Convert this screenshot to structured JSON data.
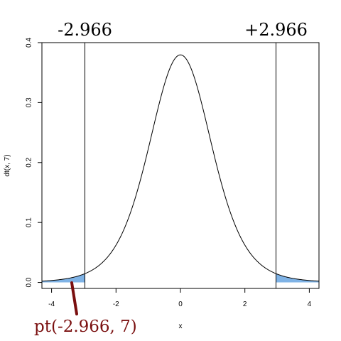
{
  "chart_data": {
    "type": "line",
    "title": "",
    "xlabel": "x",
    "ylabel": "dt(x, 7)",
    "xlim": [
      -4.3,
      4.3
    ],
    "ylim": [
      -0.01,
      0.4
    ],
    "x_ticks": [
      -4,
      -2,
      0,
      2,
      4
    ],
    "x_tick_labels": [
      "-4",
      "-2",
      "0",
      "2",
      "4"
    ],
    "y_ticks": [
      0.0,
      0.1,
      0.2,
      0.3,
      0.4
    ],
    "y_tick_labels": [
      "0.0",
      "0.1",
      "0.2",
      "0.3",
      "0.4"
    ],
    "grid": false,
    "series": [
      {
        "x": [
          -4.3,
          -4.0,
          -3.5,
          -3.0,
          -2.966,
          -2.5,
          -2.0,
          -1.5,
          -1.0,
          -0.5,
          0.0,
          0.5,
          1.0,
          1.5,
          2.0,
          2.5,
          2.966,
          3.0,
          3.5,
          4.0,
          4.3
        ],
        "values": [
          0.0027,
          0.0042,
          0.0082,
          0.0145,
          0.0152,
          0.0339,
          0.064,
          0.1254,
          0.2291,
          0.3393,
          0.3796,
          0.3393,
          0.2291,
          0.1254,
          0.064,
          0.0339,
          0.0152,
          0.0145,
          0.0082,
          0.0042,
          0.0027
        ]
      }
    ],
    "critical_values": [
      -2.966,
      2.966
    ],
    "critical_labels": [
      "-2.966",
      "+2.966"
    ],
    "shaded_tails": "both",
    "shade_color": "#7fb3e6",
    "annotation": {
      "text": "pt(-2.966, 7)",
      "color": "#7a0f0f"
    }
  }
}
